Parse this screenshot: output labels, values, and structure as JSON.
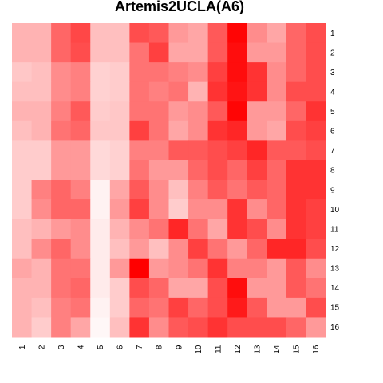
{
  "chart_data": {
    "type": "heatmap",
    "title": "Artemis2UCLA(A6)",
    "rows": [
      "1",
      "2",
      "3",
      "4",
      "5",
      "6",
      "7",
      "8",
      "9",
      "10",
      "11",
      "12",
      "13",
      "14",
      "15",
      "16"
    ],
    "cols": [
      "1",
      "2",
      "3",
      "4",
      "5",
      "6",
      "7",
      "8",
      "9",
      "10",
      "11",
      "12",
      "13",
      "14",
      "15",
      "16"
    ],
    "color_low": "#ffffff",
    "color_high": "#ff0000",
    "values": [
      [
        0.3,
        0.3,
        0.6,
        0.72,
        0.25,
        0.25,
        0.7,
        0.65,
        0.4,
        0.35,
        0.65,
        0.98,
        0.45,
        0.35,
        0.6,
        0.7
      ],
      [
        0.3,
        0.3,
        0.6,
        0.7,
        0.25,
        0.25,
        0.55,
        0.75,
        0.35,
        0.35,
        0.65,
        0.95,
        0.4,
        0.4,
        0.6,
        0.7
      ],
      [
        0.22,
        0.25,
        0.45,
        0.5,
        0.18,
        0.2,
        0.55,
        0.55,
        0.5,
        0.45,
        0.75,
        0.95,
        0.8,
        0.45,
        0.6,
        0.7
      ],
      [
        0.25,
        0.25,
        0.45,
        0.5,
        0.18,
        0.2,
        0.55,
        0.5,
        0.55,
        0.3,
        0.8,
        0.92,
        0.8,
        0.45,
        0.7,
        0.7
      ],
      [
        0.3,
        0.3,
        0.5,
        0.65,
        0.2,
        0.22,
        0.55,
        0.55,
        0.4,
        0.45,
        0.65,
        0.98,
        0.4,
        0.4,
        0.6,
        0.8
      ],
      [
        0.25,
        0.3,
        0.55,
        0.6,
        0.22,
        0.22,
        0.75,
        0.55,
        0.35,
        0.45,
        0.8,
        0.85,
        0.4,
        0.35,
        0.7,
        0.75
      ],
      [
        0.2,
        0.2,
        0.4,
        0.4,
        0.15,
        0.18,
        0.5,
        0.5,
        0.65,
        0.65,
        0.7,
        0.75,
        0.85,
        0.65,
        0.65,
        0.7
      ],
      [
        0.2,
        0.2,
        0.4,
        0.4,
        0.15,
        0.18,
        0.55,
        0.4,
        0.4,
        0.6,
        0.7,
        0.6,
        0.75,
        0.6,
        0.8,
        0.8
      ],
      [
        0.2,
        0.5,
        0.6,
        0.5,
        0.05,
        0.35,
        0.65,
        0.45,
        0.25,
        0.5,
        0.65,
        0.55,
        0.65,
        0.6,
        0.8,
        0.8
      ],
      [
        0.2,
        0.45,
        0.6,
        0.6,
        0.05,
        0.4,
        0.75,
        0.45,
        0.2,
        0.45,
        0.45,
        0.8,
        0.45,
        0.6,
        0.8,
        0.75
      ],
      [
        0.25,
        0.3,
        0.4,
        0.45,
        0.08,
        0.3,
        0.45,
        0.55,
        0.85,
        0.55,
        0.35,
        0.8,
        0.7,
        0.45,
        0.8,
        0.75
      ],
      [
        0.25,
        0.45,
        0.6,
        0.45,
        0.08,
        0.25,
        0.4,
        0.25,
        0.45,
        0.75,
        0.55,
        0.4,
        0.6,
        0.85,
        0.85,
        0.7
      ],
      [
        0.35,
        0.3,
        0.55,
        0.55,
        0.08,
        0.4,
        1.0,
        0.4,
        0.45,
        0.55,
        0.8,
        0.5,
        0.5,
        0.4,
        0.65,
        0.45
      ],
      [
        0.3,
        0.3,
        0.55,
        0.6,
        0.08,
        0.2,
        0.7,
        0.6,
        0.35,
        0.35,
        0.7,
        0.95,
        0.4,
        0.4,
        0.65,
        0.55
      ],
      [
        0.3,
        0.25,
        0.5,
        0.55,
        0.05,
        0.2,
        0.6,
        0.55,
        0.75,
        0.6,
        0.7,
        0.9,
        0.65,
        0.4,
        0.4,
        0.7
      ],
      [
        0.3,
        0.2,
        0.5,
        0.35,
        0.03,
        0.25,
        0.8,
        0.45,
        0.65,
        0.7,
        0.8,
        0.7,
        0.7,
        0.7,
        0.6,
        0.4
      ]
    ]
  }
}
